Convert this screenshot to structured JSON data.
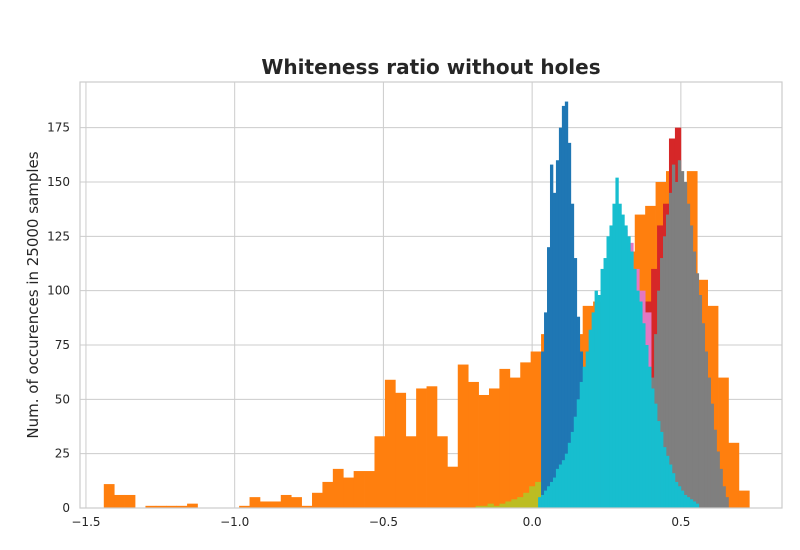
{
  "chart_data": {
    "type": "histogram",
    "title": "Whiteness ratio without holes",
    "xlabel": "",
    "ylabel": "Num. of occurences in 25000 samples",
    "xlim": [
      -1.52,
      0.84
    ],
    "ylim": [
      0,
      196
    ],
    "xticks": [
      -1.5,
      -1.0,
      -0.5,
      0.0,
      0.5
    ],
    "xtick_labels": [
      "−1.5",
      "−1.0",
      "−0.5",
      "0.0",
      "0.5"
    ],
    "yticks": [
      0,
      25,
      50,
      75,
      100,
      125,
      150,
      175
    ],
    "grid": true,
    "legend": "none",
    "series": [
      {
        "color": "#ff7f0e",
        "bins": [
          [
            -1.44,
            -1.405,
            11
          ],
          [
            -1.405,
            -1.37,
            6
          ],
          [
            -1.37,
            -1.335,
            6
          ],
          [
            -1.335,
            -1.3,
            0
          ],
          [
            -1.3,
            -1.265,
            1
          ],
          [
            -1.265,
            -1.23,
            1
          ],
          [
            -1.23,
            -1.195,
            1
          ],
          [
            -1.195,
            -1.16,
            1
          ],
          [
            -1.16,
            -1.125,
            2
          ],
          [
            -1.125,
            -1.09,
            0
          ],
          [
            -1.09,
            -1.055,
            0
          ],
          [
            -1.055,
            -1.02,
            0
          ],
          [
            -1.02,
            -0.985,
            0
          ],
          [
            -0.985,
            -0.95,
            1
          ],
          [
            -0.95,
            -0.915,
            5
          ],
          [
            -0.915,
            -0.88,
            3
          ],
          [
            -0.88,
            -0.845,
            3
          ],
          [
            -0.845,
            -0.81,
            6
          ],
          [
            -0.81,
            -0.775,
            5
          ],
          [
            -0.775,
            -0.74,
            1
          ],
          [
            -0.74,
            -0.705,
            7
          ],
          [
            -0.705,
            -0.67,
            12
          ],
          [
            -0.67,
            -0.635,
            18
          ],
          [
            -0.635,
            -0.6,
            14
          ],
          [
            -0.6,
            -0.565,
            17
          ],
          [
            -0.565,
            -0.53,
            17
          ],
          [
            -0.53,
            -0.495,
            33
          ],
          [
            -0.495,
            -0.46,
            59
          ],
          [
            -0.46,
            -0.425,
            53
          ],
          [
            -0.425,
            -0.39,
            33
          ],
          [
            -0.39,
            -0.355,
            55
          ],
          [
            -0.355,
            -0.32,
            56
          ],
          [
            -0.32,
            -0.285,
            33
          ],
          [
            -0.285,
            -0.25,
            19
          ],
          [
            -0.25,
            -0.215,
            66
          ],
          [
            -0.215,
            -0.18,
            58
          ],
          [
            -0.18,
            -0.145,
            52
          ],
          [
            -0.145,
            -0.11,
            55
          ],
          [
            -0.11,
            -0.075,
            64
          ],
          [
            -0.075,
            -0.04,
            60
          ],
          [
            -0.04,
            -0.005,
            67
          ],
          [
            -0.005,
            0.03,
            72
          ],
          [
            0.03,
            0.065,
            80
          ],
          [
            0.065,
            0.1,
            90
          ],
          [
            0.1,
            0.135,
            76
          ],
          [
            0.135,
            0.17,
            80
          ],
          [
            0.17,
            0.205,
            93
          ],
          [
            0.205,
            0.24,
            95
          ],
          [
            0.24,
            0.275,
            105
          ],
          [
            0.275,
            0.31,
            110
          ],
          [
            0.31,
            0.345,
            118
          ],
          [
            0.345,
            0.38,
            135
          ],
          [
            0.38,
            0.415,
            139
          ],
          [
            0.415,
            0.45,
            150
          ],
          [
            0.45,
            0.485,
            155
          ],
          [
            0.485,
            0.52,
            135
          ],
          [
            0.52,
            0.555,
            155
          ],
          [
            0.555,
            0.59,
            105
          ],
          [
            0.59,
            0.625,
            93
          ],
          [
            0.625,
            0.66,
            60
          ],
          [
            0.66,
            0.695,
            30
          ],
          [
            0.695,
            0.73,
            8
          ]
        ]
      },
      {
        "color": "#bcbd22",
        "bins": [
          [
            -0.19,
            -0.17,
            1
          ],
          [
            -0.17,
            -0.15,
            1
          ],
          [
            -0.15,
            -0.13,
            2
          ],
          [
            -0.13,
            -0.11,
            1
          ],
          [
            -0.11,
            -0.09,
            2
          ],
          [
            -0.09,
            -0.07,
            3
          ],
          [
            -0.07,
            -0.05,
            4
          ],
          [
            -0.05,
            -0.03,
            5
          ],
          [
            -0.03,
            -0.01,
            7
          ],
          [
            -0.01,
            0.01,
            10
          ],
          [
            0.01,
            0.03,
            12
          ],
          [
            0.03,
            0.05,
            18
          ],
          [
            0.05,
            0.07,
            28
          ],
          [
            0.07,
            0.09,
            45
          ],
          [
            0.09,
            0.11,
            55
          ],
          [
            0.11,
            0.13,
            62
          ],
          [
            0.13,
            0.15,
            68
          ],
          [
            0.15,
            0.17,
            52
          ],
          [
            0.17,
            0.19,
            58
          ],
          [
            0.19,
            0.21,
            72
          ],
          [
            0.21,
            0.23,
            66
          ],
          [
            0.23,
            0.25,
            70
          ],
          [
            0.25,
            0.27,
            78
          ],
          [
            0.27,
            0.29,
            72
          ],
          [
            0.29,
            0.31,
            64
          ],
          [
            0.31,
            0.33,
            58
          ],
          [
            0.33,
            0.35,
            52
          ],
          [
            0.35,
            0.37,
            46
          ],
          [
            0.37,
            0.39,
            38
          ],
          [
            0.39,
            0.41,
            30
          ],
          [
            0.41,
            0.43,
            24
          ],
          [
            0.43,
            0.45,
            18
          ],
          [
            0.45,
            0.47,
            14
          ],
          [
            0.47,
            0.49,
            10
          ],
          [
            0.49,
            0.51,
            7
          ],
          [
            0.51,
            0.53,
            4
          ],
          [
            0.53,
            0.55,
            2
          ]
        ]
      },
      {
        "color": "#d62728",
        "bins": [
          [
            0.3,
            0.32,
            30
          ],
          [
            0.32,
            0.34,
            45
          ],
          [
            0.34,
            0.36,
            62
          ],
          [
            0.36,
            0.38,
            80
          ],
          [
            0.38,
            0.4,
            95
          ],
          [
            0.4,
            0.42,
            110
          ],
          [
            0.42,
            0.44,
            130
          ],
          [
            0.44,
            0.46,
            140
          ],
          [
            0.46,
            0.48,
            170
          ],
          [
            0.48,
            0.5,
            175
          ],
          [
            0.5,
            0.52,
            120
          ],
          [
            0.52,
            0.54,
            70
          ]
        ]
      },
      {
        "color": "#7f7f7f",
        "bins": [
          [
            0.38,
            0.39,
            35
          ],
          [
            0.39,
            0.4,
            45
          ],
          [
            0.4,
            0.41,
            60
          ],
          [
            0.41,
            0.42,
            80
          ],
          [
            0.42,
            0.43,
            100
          ],
          [
            0.43,
            0.44,
            115
          ],
          [
            0.44,
            0.45,
            125
          ],
          [
            0.45,
            0.46,
            135
          ],
          [
            0.46,
            0.47,
            145
          ],
          [
            0.47,
            0.48,
            158
          ],
          [
            0.48,
            0.49,
            150
          ],
          [
            0.49,
            0.5,
            160
          ],
          [
            0.5,
            0.51,
            155
          ],
          [
            0.51,
            0.52,
            150
          ],
          [
            0.52,
            0.53,
            140
          ],
          [
            0.53,
            0.54,
            130
          ],
          [
            0.54,
            0.55,
            118
          ],
          [
            0.55,
            0.56,
            108
          ],
          [
            0.56,
            0.57,
            98
          ],
          [
            0.57,
            0.58,
            85
          ],
          [
            0.58,
            0.59,
            72
          ],
          [
            0.59,
            0.6,
            60
          ],
          [
            0.6,
            0.61,
            48
          ],
          [
            0.61,
            0.62,
            36
          ],
          [
            0.62,
            0.63,
            26
          ],
          [
            0.63,
            0.64,
            18
          ],
          [
            0.64,
            0.65,
            10
          ],
          [
            0.65,
            0.66,
            5
          ]
        ]
      },
      {
        "color": "#e377c2",
        "bins": [
          [
            0.22,
            0.24,
            80
          ],
          [
            0.24,
            0.26,
            100
          ],
          [
            0.26,
            0.28,
            115
          ],
          [
            0.28,
            0.3,
            125
          ],
          [
            0.3,
            0.32,
            128
          ],
          [
            0.32,
            0.34,
            122
          ],
          [
            0.34,
            0.36,
            110
          ],
          [
            0.36,
            0.38,
            100
          ],
          [
            0.38,
            0.4,
            90
          ]
        ]
      },
      {
        "color": "#1f77b4",
        "bins": [
          [
            0.03,
            0.04,
            72
          ],
          [
            0.04,
            0.05,
            90
          ],
          [
            0.05,
            0.06,
            120
          ],
          [
            0.06,
            0.07,
            158
          ],
          [
            0.07,
            0.08,
            145
          ],
          [
            0.08,
            0.09,
            160
          ],
          [
            0.09,
            0.1,
            175
          ],
          [
            0.1,
            0.11,
            185
          ],
          [
            0.11,
            0.12,
            187
          ],
          [
            0.12,
            0.13,
            168
          ],
          [
            0.13,
            0.14,
            140
          ],
          [
            0.14,
            0.15,
            115
          ],
          [
            0.15,
            0.16,
            88
          ],
          [
            0.16,
            0.17,
            72
          ]
        ]
      },
      {
        "color": "#17becf",
        "bins": [
          [
            0.02,
            0.03,
            5
          ],
          [
            0.03,
            0.04,
            6
          ],
          [
            0.04,
            0.05,
            8
          ],
          [
            0.05,
            0.06,
            10
          ],
          [
            0.06,
            0.07,
            12
          ],
          [
            0.07,
            0.08,
            14
          ],
          [
            0.08,
            0.09,
            18
          ],
          [
            0.09,
            0.1,
            20
          ],
          [
            0.1,
            0.11,
            22
          ],
          [
            0.11,
            0.12,
            25
          ],
          [
            0.12,
            0.13,
            30
          ],
          [
            0.13,
            0.14,
            35
          ],
          [
            0.14,
            0.15,
            42
          ],
          [
            0.15,
            0.16,
            50
          ],
          [
            0.16,
            0.17,
            58
          ],
          [
            0.17,
            0.18,
            65
          ],
          [
            0.18,
            0.19,
            72
          ],
          [
            0.19,
            0.2,
            82
          ],
          [
            0.2,
            0.21,
            90
          ],
          [
            0.21,
            0.22,
            100
          ],
          [
            0.22,
            0.23,
            98
          ],
          [
            0.23,
            0.24,
            110
          ],
          [
            0.24,
            0.25,
            115
          ],
          [
            0.25,
            0.26,
            125
          ],
          [
            0.26,
            0.27,
            130
          ],
          [
            0.27,
            0.28,
            140
          ],
          [
            0.28,
            0.29,
            152
          ],
          [
            0.29,
            0.3,
            140
          ],
          [
            0.3,
            0.31,
            135
          ],
          [
            0.31,
            0.32,
            130
          ],
          [
            0.32,
            0.33,
            125
          ],
          [
            0.33,
            0.34,
            118
          ],
          [
            0.34,
            0.35,
            110
          ],
          [
            0.35,
            0.36,
            100
          ],
          [
            0.36,
            0.37,
            95
          ],
          [
            0.37,
            0.38,
            85
          ],
          [
            0.38,
            0.39,
            75
          ],
          [
            0.39,
            0.4,
            65
          ],
          [
            0.4,
            0.41,
            55
          ],
          [
            0.41,
            0.42,
            48
          ],
          [
            0.42,
            0.43,
            40
          ],
          [
            0.43,
            0.44,
            35
          ],
          [
            0.44,
            0.45,
            28
          ],
          [
            0.45,
            0.46,
            24
          ],
          [
            0.46,
            0.47,
            20
          ],
          [
            0.47,
            0.48,
            16
          ],
          [
            0.48,
            0.49,
            12
          ],
          [
            0.49,
            0.5,
            10
          ],
          [
            0.5,
            0.51,
            8
          ],
          [
            0.51,
            0.52,
            6
          ],
          [
            0.52,
            0.53,
            5
          ],
          [
            0.53,
            0.54,
            4
          ],
          [
            0.54,
            0.55,
            3
          ],
          [
            0.55,
            0.56,
            2
          ]
        ]
      }
    ]
  }
}
